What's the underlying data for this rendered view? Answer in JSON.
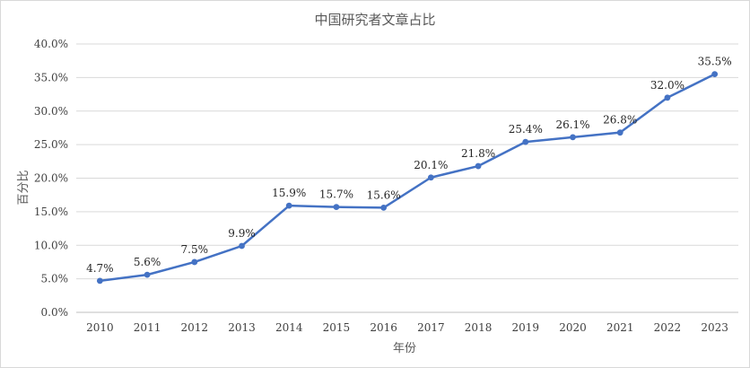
{
  "chart_data": {
    "type": "line",
    "title": "中国研究者文章占比",
    "xlabel": "年份",
    "ylabel": "百分比",
    "categories": [
      "2010",
      "2011",
      "2012",
      "2013",
      "2014",
      "2015",
      "2016",
      "2017",
      "2018",
      "2019",
      "2020",
      "2021",
      "2022",
      "2023"
    ],
    "series": [
      {
        "values": [
          4.7,
          5.6,
          7.5,
          9.9,
          15.9,
          15.7,
          15.6,
          20.1,
          21.8,
          25.4,
          26.1,
          26.8,
          32.0,
          35.5
        ],
        "labels": [
          "4.7%",
          "5.6%",
          "7.5%",
          "9.9%",
          "15.9%",
          "15.7%",
          "15.6%",
          "20.1%",
          "21.8%",
          "25.4%",
          "26.1%",
          "26.8%",
          "32.0%",
          "35.5%"
        ],
        "color": "#4472c4"
      }
    ],
    "yticks": [
      0,
      5,
      10,
      15,
      20,
      25,
      30,
      35,
      40
    ],
    "ytick_labels": [
      "0.0%",
      "5.0%",
      "10.0%",
      "15.0%",
      "20.0%",
      "25.0%",
      "30.0%",
      "35.0%",
      "40.0%"
    ],
    "ylim": [
      0,
      40
    ],
    "grid": true,
    "legend": "none"
  }
}
